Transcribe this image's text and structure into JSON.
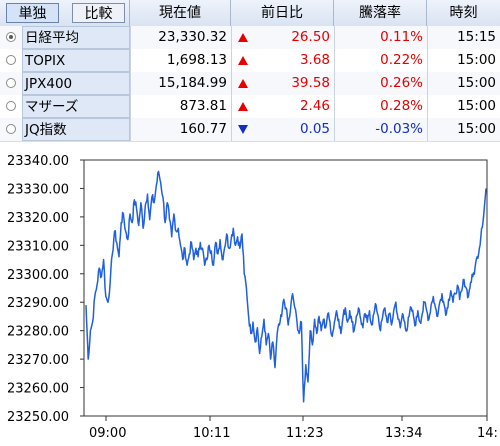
{
  "tabs": [
    {
      "label": "単独",
      "active": true
    },
    {
      "label": "比較",
      "active": false
    }
  ],
  "columns": {
    "price": "現在値",
    "change": "前日比",
    "pct": "騰落率",
    "time": "時刻"
  },
  "rows": [
    {
      "name": "日経平均",
      "selected": true,
      "price": "23,330.32",
      "direction": "up",
      "change": "26.50",
      "pct": "0.11%",
      "time": "15:15"
    },
    {
      "name": "TOPIX",
      "selected": false,
      "price": "1,698.13",
      "direction": "up",
      "change": "3.68",
      "pct": "0.22%",
      "time": "15:00"
    },
    {
      "name": "JPX400",
      "selected": false,
      "price": "15,184.99",
      "direction": "up",
      "change": "39.58",
      "pct": "0.26%",
      "time": "15:00"
    },
    {
      "name": "マザーズ",
      "selected": false,
      "price": "873.81",
      "direction": "up",
      "change": "2.46",
      "pct": "0.28%",
      "time": "15:00"
    },
    {
      "name": "JQ指数",
      "selected": false,
      "price": "160.77",
      "direction": "down",
      "change": "0.05",
      "pct": "-0.03%",
      "time": "15:00"
    }
  ],
  "colors": {
    "up": "#e60000",
    "down": "#1030c8",
    "line": "#1f5fe0"
  },
  "chart_data": {
    "type": "line",
    "ylim": [
      23250,
      23340
    ],
    "yticks": [
      "23340.00",
      "23330.00",
      "23320.00",
      "23310.00",
      "23300.00",
      "23290.00",
      "23280.00",
      "23270.00",
      "23260.00",
      "23250.00"
    ],
    "xticks": [
      "09:00",
      "10:11",
      "11:23",
      "13:34",
      "14:"
    ],
    "series": [
      {
        "points": [
          [
            0,
            23289
          ],
          [
            2,
            23270
          ],
          [
            4,
            23280
          ],
          [
            6,
            23283
          ],
          [
            8,
            23292
          ],
          [
            10,
            23296
          ],
          [
            12,
            23302
          ],
          [
            14,
            23299
          ],
          [
            16,
            23305
          ],
          [
            18,
            23292
          ],
          [
            20,
            23290
          ],
          [
            22,
            23297
          ],
          [
            24,
            23307
          ],
          [
            26,
            23315
          ],
          [
            28,
            23311
          ],
          [
            30,
            23306
          ],
          [
            32,
            23318
          ],
          [
            34,
            23321
          ],
          [
            36,
            23315
          ],
          [
            38,
            23312
          ],
          [
            40,
            23321
          ],
          [
            42,
            23318
          ],
          [
            44,
            23326
          ],
          [
            46,
            23323
          ],
          [
            48,
            23317
          ],
          [
            50,
            23325
          ],
          [
            52,
            23316
          ],
          [
            54,
            23324
          ],
          [
            56,
            23328
          ],
          [
            58,
            23319
          ],
          [
            60,
            23327
          ],
          [
            62,
            23325
          ],
          [
            64,
            23331
          ],
          [
            66,
            23336
          ],
          [
            68,
            23332
          ],
          [
            70,
            23327
          ],
          [
            72,
            23318
          ],
          [
            74,
            23325
          ],
          [
            76,
            23319
          ],
          [
            78,
            23313
          ],
          [
            80,
            23321
          ],
          [
            82,
            23315
          ],
          [
            84,
            23316
          ],
          [
            86,
            23310
          ],
          [
            88,
            23305
          ],
          [
            90,
            23309
          ],
          [
            92,
            23303
          ],
          [
            94,
            23307
          ],
          [
            96,
            23311
          ],
          [
            98,
            23305
          ],
          [
            100,
            23309
          ],
          [
            102,
            23306
          ],
          [
            104,
            23311
          ],
          [
            106,
            23309
          ],
          [
            108,
            23303
          ],
          [
            110,
            23305
          ],
          [
            112,
            23310
          ],
          [
            114,
            23308
          ],
          [
            116,
            23303
          ],
          [
            118,
            23311
          ],
          [
            120,
            23307
          ],
          [
            122,
            23312
          ],
          [
            124,
            23305
          ],
          [
            126,
            23309
          ],
          [
            128,
            23314
          ],
          [
            130,
            23309
          ],
          [
            132,
            23312
          ],
          [
            134,
            23316
          ],
          [
            136,
            23310
          ],
          [
            138,
            23313
          ],
          [
            140,
            23309
          ],
          [
            142,
            23314
          ],
          [
            144,
            23300
          ],
          [
            146,
            23295
          ],
          [
            148,
            23285
          ],
          [
            150,
            23279
          ],
          [
            152,
            23283
          ],
          [
            154,
            23276
          ],
          [
            156,
            23281
          ],
          [
            158,
            23272
          ],
          [
            160,
            23278
          ],
          [
            162,
            23284
          ],
          [
            164,
            23275
          ],
          [
            166,
            23279
          ],
          [
            168,
            23270
          ],
          [
            170,
            23276
          ],
          [
            172,
            23267
          ],
          [
            174,
            23279
          ],
          [
            176,
            23282
          ],
          [
            178,
            23285
          ],
          [
            180,
            23291
          ],
          [
            182,
            23288
          ],
          [
            184,
            23282
          ],
          [
            186,
            23287
          ],
          [
            188,
            23293
          ],
          [
            190,
            23288
          ],
          [
            192,
            23283
          ],
          [
            194,
            23279
          ],
          [
            196,
            23283
          ],
          [
            198,
            23255
          ],
          [
            200,
            23268
          ],
          [
            202,
            23262
          ],
          [
            204,
            23280
          ],
          [
            206,
            23275
          ],
          [
            208,
            23284
          ],
          [
            210,
            23279
          ],
          [
            212,
            23285
          ],
          [
            214,
            23280
          ],
          [
            216,
            23284
          ],
          [
            218,
            23281
          ],
          [
            220,
            23286
          ],
          [
            222,
            23283
          ],
          [
            224,
            23278
          ],
          [
            226,
            23283
          ],
          [
            228,
            23287
          ],
          [
            230,
            23284
          ],
          [
            232,
            23279
          ],
          [
            234,
            23285
          ],
          [
            236,
            23288
          ],
          [
            238,
            23283
          ],
          [
            240,
            23287
          ],
          [
            242,
            23283
          ],
          [
            244,
            23280
          ],
          [
            246,
            23285
          ],
          [
            248,
            23288
          ],
          [
            250,
            23284
          ],
          [
            252,
            23281
          ],
          [
            254,
            23286
          ],
          [
            256,
            23283
          ],
          [
            258,
            23287
          ],
          [
            260,
            23282
          ],
          [
            262,
            23286
          ],
          [
            264,
            23289
          ],
          [
            266,
            23285
          ],
          [
            268,
            23280
          ],
          [
            270,
            23285
          ],
          [
            272,
            23288
          ],
          [
            274,
            23283
          ],
          [
            276,
            23286
          ],
          [
            278,
            23282
          ],
          [
            280,
            23287
          ],
          [
            282,
            23290
          ],
          [
            284,
            23284
          ],
          [
            286,
            23281
          ],
          [
            288,
            23286
          ],
          [
            290,
            23283
          ],
          [
            292,
            23280
          ],
          [
            294,
            23285
          ],
          [
            296,
            23288
          ],
          [
            298,
            23285
          ],
          [
            300,
            23282
          ],
          [
            302,
            23287
          ],
          [
            304,
            23283
          ],
          [
            306,
            23286
          ],
          [
            308,
            23290
          ],
          [
            310,
            23287
          ],
          [
            312,
            23284
          ],
          [
            314,
            23289
          ],
          [
            316,
            23292
          ],
          [
            318,
            23288
          ],
          [
            320,
            23285
          ],
          [
            322,
            23290
          ],
          [
            324,
            23293
          ],
          [
            326,
            23289
          ],
          [
            328,
            23286
          ],
          [
            330,
            23291
          ],
          [
            332,
            23294
          ],
          [
            334,
            23290
          ],
          [
            336,
            23293
          ],
          [
            338,
            23296
          ],
          [
            340,
            23291
          ],
          [
            342,
            23294
          ],
          [
            344,
            23298
          ],
          [
            346,
            23295
          ],
          [
            348,
            23292
          ],
          [
            350,
            23297
          ],
          [
            352,
            23299
          ],
          [
            354,
            23302
          ],
          [
            356,
            23306
          ],
          [
            358,
            23309
          ],
          [
            360,
            23316
          ],
          [
            362,
            23321
          ],
          [
            364,
            23330
          ]
        ]
      }
    ]
  }
}
